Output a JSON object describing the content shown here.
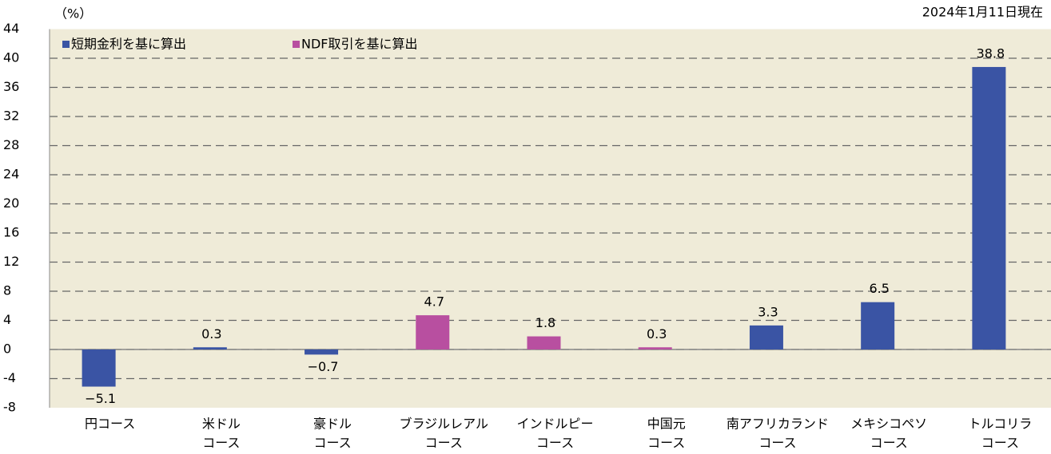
{
  "chart_data": {
    "type": "bar",
    "y_label": "（%）",
    "annotation": "2024年1月11日現在",
    "categories": [
      [
        "円コース"
      ],
      [
        "米ドル",
        "コース"
      ],
      [
        "豪ドル",
        "コース"
      ],
      [
        "ブラジルレアル",
        "コース"
      ],
      [
        "インドルピー",
        "コース"
      ],
      [
        "中国元",
        "コース"
      ],
      [
        "南アフリカランド",
        "コース"
      ],
      [
        "メキシコペソ",
        "コース"
      ],
      [
        "トルコリラ",
        "コース"
      ]
    ],
    "series": [
      {
        "name": "短期金利を基に算出",
        "color": "#3a54a4",
        "values": [
          -5.1,
          0.3,
          -0.7,
          null,
          null,
          null,
          3.3,
          6.5,
          38.8
        ],
        "value_labels": [
          "−5.1",
          "0.3",
          "−0.7",
          null,
          null,
          null,
          "3.3",
          "6.5",
          "38.8"
        ]
      },
      {
        "name": "NDF取引を基に算出",
        "color": "#b84fa0",
        "values": [
          null,
          null,
          null,
          4.7,
          1.8,
          0.3,
          null,
          null,
          null
        ],
        "value_labels": [
          null,
          null,
          null,
          "4.7",
          "1.8",
          "0.3",
          null,
          null,
          null
        ]
      }
    ],
    "ylim": [
      -8,
      44
    ],
    "yticks": [
      -8,
      -4,
      0,
      4,
      8,
      12,
      16,
      20,
      24,
      28,
      32,
      36,
      40,
      44
    ],
    "grid": true,
    "legend": "top-left"
  }
}
